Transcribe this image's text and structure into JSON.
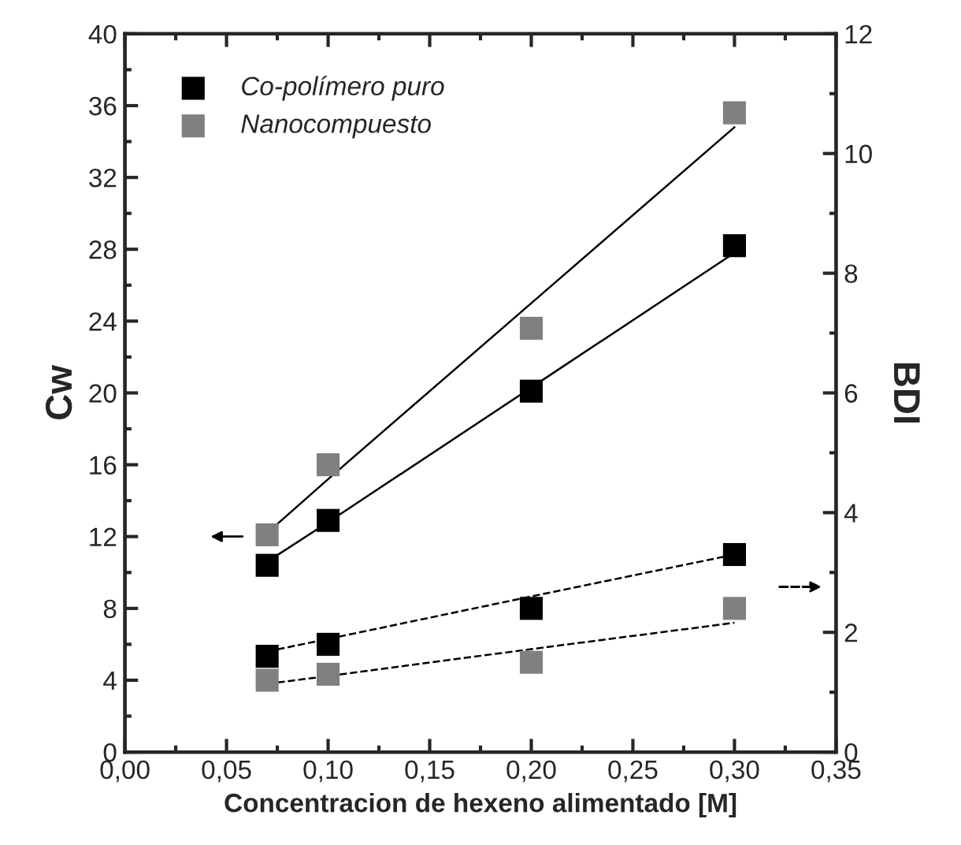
{
  "chart_data": {
    "type": "scatter",
    "xlabel": "Concentracion de hexeno alimentado [M]",
    "ylabel": "Cw",
    "y2label": "BDI",
    "x": [
      0.07,
      0.1,
      0.2,
      0.3
    ],
    "series": [
      {
        "name": "Co-polímero puro",
        "color": "#000000",
        "values": [
          10.4,
          12.9,
          20.1,
          28.2
        ]
      },
      {
        "name": "Nanocompuesto",
        "color": "#808080",
        "values": [
          12.1,
          16.0,
          23.6,
          35.6
        ]
      },
      {
        "color": "#000000",
        "axis": "y2",
        "values": [
          1.6,
          1.8,
          2.4,
          3.3
        ]
      },
      {
        "color": "#808080",
        "axis": "y2",
        "values": [
          1.2,
          1.3,
          1.5,
          2.4
        ]
      },
      {
        "type": "line",
        "color": "#000000",
        "values": [
          10.6,
          12.8,
          20.3,
          27.8
        ],
        "line_style": "solid",
        "marker": "none"
      },
      {
        "type": "line",
        "color": "#000000",
        "values": [
          12.2,
          15.2,
          25.0,
          34.8
        ],
        "line_style": "solid",
        "marker": "none"
      },
      {
        "type": "line",
        "color": "#000000",
        "axis": "y2",
        "values": [
          1.68,
          1.89,
          2.6,
          3.3
        ],
        "line_style": "dashed",
        "marker": "none"
      },
      {
        "type": "line",
        "color": "#000000",
        "axis": "y2",
        "values": [
          1.14,
          1.27,
          1.72,
          2.16
        ],
        "line_style": "dashed",
        "marker": "none"
      }
    ],
    "marker": "square",
    "legend": "top left",
    "grid": false,
    "xlim": [
      0,
      0.35
    ],
    "xticks": [
      {
        "value": 0,
        "label": "0,00"
      },
      {
        "value": 0.05,
        "label": "0,05"
      },
      {
        "value": 0.1,
        "label": "0,10"
      },
      {
        "value": 0.15,
        "label": "0,15"
      },
      {
        "value": 0.2,
        "label": "0,20"
      },
      {
        "value": 0.25,
        "label": "0,25"
      },
      {
        "value": 0.3,
        "label": "0,30"
      },
      {
        "value": 0.35,
        "label": "0,35"
      }
    ],
    "ylim": [
      0,
      40
    ],
    "yticks": [
      0,
      4,
      8,
      12,
      16,
      20,
      24,
      28,
      32,
      36,
      40
    ],
    "y2lim": [
      0,
      12
    ],
    "y2ticks": [
      0,
      2,
      4,
      6,
      8,
      10,
      12
    ]
  }
}
